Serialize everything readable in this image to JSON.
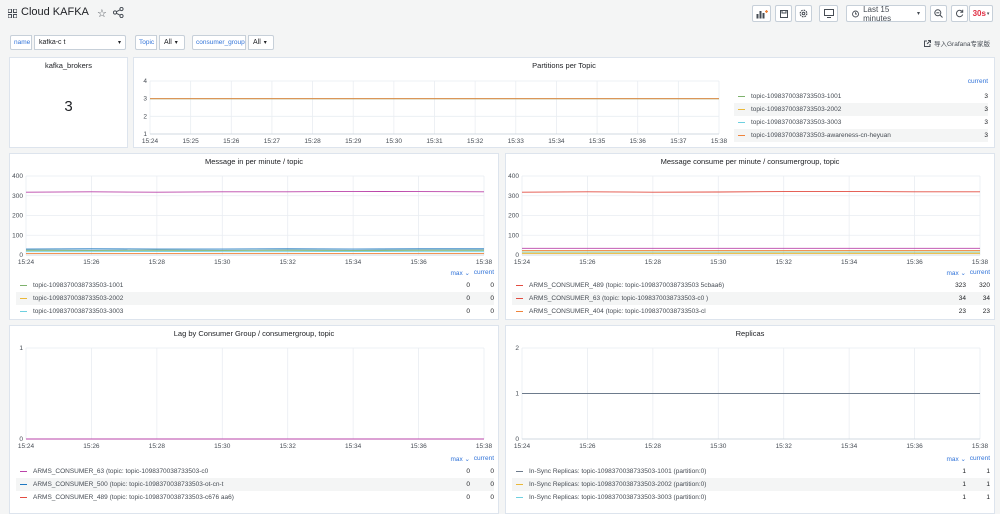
{
  "header": {
    "title": "Cloud KAFKA",
    "refresh_interval": "30s",
    "time_range": "Last 15 minutes"
  },
  "variables": [
    {
      "label": "name",
      "value": "kafka-c                t"
    },
    {
      "label": "Topic",
      "value": "All"
    },
    {
      "label": "consumer_group",
      "value": "All"
    }
  ],
  "import_link": "导入Grafana专家版",
  "colors": {
    "green": "#7eb26d",
    "yellow": "#eab839",
    "cyan": "#6ed0e0",
    "orange": "#ef843c",
    "red": "#e24d42",
    "blue": "#1f78c1",
    "purple": "#ba43a9",
    "grey": "#6d7b8c"
  },
  "panels": {
    "brokers": {
      "title": "kafka_brokers",
      "value": "3"
    },
    "partitions": {
      "title": "Partitions per Topic",
      "legend_current_label": "current",
      "x_ticks": [
        "15:24",
        "15:25",
        "15:26",
        "15:27",
        "15:28",
        "15:29",
        "15:30",
        "15:31",
        "15:32",
        "15:33",
        "15:34",
        "15:35",
        "15:36",
        "15:37",
        "15:38"
      ],
      "y_ticks": [
        "1",
        "2",
        "3",
        "4"
      ],
      "legend": [
        {
          "name": "topic-1098370038733503-1001",
          "current": "3",
          "color": "#7eb26d"
        },
        {
          "name": "topic-1098370038733503-2002",
          "current": "3",
          "color": "#eab839"
        },
        {
          "name": "topic-1098370038733503-3003",
          "current": "3",
          "color": "#6ed0e0"
        },
        {
          "name": "topic-1098370038733503-awareness-cn-heyuan",
          "current": "3",
          "color": "#ef843c"
        }
      ]
    },
    "msg_in": {
      "title": "Message in per minute  /  topic",
      "legend_max_label": "max",
      "legend_current_label": "current",
      "x_ticks": [
        "15:24",
        "15:26",
        "15:28",
        "15:30",
        "15:32",
        "15:34",
        "15:36",
        "15:38"
      ],
      "y_ticks": [
        "0",
        "100",
        "200",
        "300",
        "400"
      ],
      "legend": [
        {
          "name": "topic-1098370038733503-1001",
          "max": "0",
          "current": "0",
          "color": "#7eb26d"
        },
        {
          "name": "topic-1098370038733503-2002",
          "max": "0",
          "current": "0",
          "color": "#eab839"
        },
        {
          "name": "topic-1098370038733503-3003",
          "max": "0",
          "current": "0",
          "color": "#6ed0e0"
        }
      ]
    },
    "msg_consume": {
      "title": "Message consume per minute / consumergroup, topic",
      "legend_max_label": "max",
      "legend_current_label": "current",
      "x_ticks": [
        "15:24",
        "15:26",
        "15:28",
        "15:30",
        "15:32",
        "15:34",
        "15:36",
        "15:38"
      ],
      "y_ticks": [
        "0",
        "100",
        "200",
        "300",
        "400"
      ],
      "legend": [
        {
          "name": "ARMS_CONSUMER_489 (topic: topic-1098370038733503              5cbaa6)",
          "max": "323",
          "current": "320",
          "color": "#e24d42"
        },
        {
          "name": "ARMS_CONSUMER_63 (topic: topic-1098370038733503-c0              )",
          "max": "34",
          "current": "34",
          "color": "#e24d42"
        },
        {
          "name": "ARMS_CONSUMER_404 (topic: topic-1098370038733503-cl",
          "max": "23",
          "current": "23",
          "color": "#ef843c"
        }
      ]
    },
    "lag": {
      "title": "Lag by Consumer Group / consumergroup, topic",
      "legend_max_label": "max",
      "legend_current_label": "current",
      "x_ticks": [
        "15:24",
        "15:26",
        "15:28",
        "15:30",
        "15:32",
        "15:34",
        "15:36",
        "15:38"
      ],
      "y_ticks": [
        "0",
        "1"
      ],
      "legend": [
        {
          "name": "ARMS_CONSUMER_63 (topic: topic-1098370038733503-c0",
          "max": "0",
          "current": "0",
          "color": "#ba43a9"
        },
        {
          "name": "ARMS_CONSUMER_500 (topic: topic-1098370038733503-ot-cn-t",
          "max": "0",
          "current": "0",
          "color": "#1f78c1"
        },
        {
          "name": "ARMS_CONSUMER_489 (topic: topic-1098370038733503-c676               aa6)",
          "max": "0",
          "current": "0",
          "color": "#e24d42"
        }
      ]
    },
    "replicas": {
      "title": "Replicas",
      "legend_max_label": "max",
      "legend_current_label": "current",
      "x_ticks": [
        "15:24",
        "15:26",
        "15:28",
        "15:30",
        "15:32",
        "15:34",
        "15:36",
        "15:38"
      ],
      "y_ticks": [
        "0",
        "1",
        "2"
      ],
      "legend": [
        {
          "name": "In-Sync Replicas: topic-1098370038733503-1001 (partition:0)",
          "max": "1",
          "current": "1",
          "color": "#6d7b8c"
        },
        {
          "name": "In-Sync Replicas: topic-1098370038733503-2002 (partition:0)",
          "max": "1",
          "current": "1",
          "color": "#eab839"
        },
        {
          "name": "In-Sync Replicas: topic-1098370038733503-3003 (partition:0)",
          "max": "1",
          "current": "1",
          "color": "#6ed0e0"
        }
      ]
    }
  },
  "chart_data": [
    {
      "type": "line",
      "title": "Partitions per Topic",
      "x": [
        "15:24",
        "15:25",
        "15:26",
        "15:27",
        "15:28",
        "15:29",
        "15:30",
        "15:31",
        "15:32",
        "15:33",
        "15:34",
        "15:35",
        "15:36",
        "15:37",
        "15:38"
      ],
      "ylim": [
        1,
        4
      ],
      "series": [
        {
          "name": "topic-1098370038733503-1001",
          "values": [
            3,
            3,
            3,
            3,
            3,
            3,
            3,
            3,
            3,
            3,
            3,
            3,
            3,
            3,
            3
          ]
        },
        {
          "name": "topic-1098370038733503-2002",
          "values": [
            3,
            3,
            3,
            3,
            3,
            3,
            3,
            3,
            3,
            3,
            3,
            3,
            3,
            3,
            3
          ]
        },
        {
          "name": "topic-1098370038733503-3003",
          "values": [
            3,
            3,
            3,
            3,
            3,
            3,
            3,
            3,
            3,
            3,
            3,
            3,
            3,
            3,
            3
          ]
        },
        {
          "name": "topic-1098370038733503-awareness-cn-heyuan",
          "values": [
            3,
            3,
            3,
            3,
            3,
            3,
            3,
            3,
            3,
            3,
            3,
            3,
            3,
            3,
            3
          ]
        }
      ]
    },
    {
      "type": "line",
      "title": "Message in per minute  /  topic",
      "x": [
        "15:24",
        "15:26",
        "15:28",
        "15:30",
        "15:32",
        "15:34",
        "15:36",
        "15:38"
      ],
      "ylim": [
        0,
        400
      ],
      "series": [
        {
          "values": [
            318,
            320,
            318,
            320,
            320,
            322,
            321,
            320
          ],
          "color": "#ba43a9"
        },
        {
          "values": [
            30,
            31,
            30,
            30,
            31,
            30,
            31,
            31
          ],
          "color": "#1f78c1"
        },
        {
          "values": [
            24,
            23,
            24,
            23,
            24,
            23,
            24,
            24
          ],
          "color": "#7eb26d"
        },
        {
          "values": [
            17,
            17,
            18,
            17,
            17,
            18,
            17,
            17
          ],
          "color": "#6ed0e0"
        },
        {
          "values": [
            8,
            8,
            8,
            8,
            8,
            8,
            8,
            8
          ],
          "color": "#ef843c"
        }
      ]
    },
    {
      "type": "line",
      "title": "Message consume per minute / consumergroup, topic",
      "x": [
        "15:24",
        "15:26",
        "15:28",
        "15:30",
        "15:32",
        "15:34",
        "15:36",
        "15:38"
      ],
      "ylim": [
        0,
        400
      ],
      "series": [
        {
          "values": [
            318,
            320,
            318,
            319,
            321,
            322,
            320,
            320
          ],
          "color": "#e24d42"
        },
        {
          "values": [
            34,
            34,
            34,
            34,
            34,
            34,
            34,
            34
          ],
          "color": "#ba43a9"
        },
        {
          "values": [
            23,
            23,
            23,
            23,
            23,
            23,
            23,
            23
          ],
          "color": "#ef843c"
        },
        {
          "values": [
            15,
            15,
            15,
            15,
            15,
            15,
            15,
            15
          ],
          "color": "#7eb26d"
        },
        {
          "values": [
            8,
            8,
            8,
            8,
            8,
            8,
            8,
            8
          ],
          "color": "#eab839"
        }
      ]
    },
    {
      "type": "line",
      "title": "Lag by Consumer Group / consumergroup, topic",
      "x": [
        "15:24",
        "15:26",
        "15:28",
        "15:30",
        "15:32",
        "15:34",
        "15:36",
        "15:38"
      ],
      "ylim": [
        0,
        1
      ],
      "series": [
        {
          "values": [
            0,
            0,
            0,
            0,
            0,
            0,
            0,
            0
          ],
          "color": "#ba43a9"
        }
      ]
    },
    {
      "type": "line",
      "title": "Replicas",
      "x": [
        "15:24",
        "15:26",
        "15:28",
        "15:30",
        "15:32",
        "15:34",
        "15:36",
        "15:38"
      ],
      "ylim": [
        0,
        2
      ],
      "series": [
        {
          "values": [
            1,
            1,
            1,
            1,
            1,
            1,
            1,
            1
          ],
          "color": "#6d7b8c"
        }
      ]
    }
  ]
}
